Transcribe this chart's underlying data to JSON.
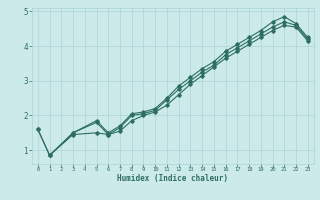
{
  "title": "",
  "xlabel": "Humidex (Indice chaleur)",
  "ylabel": "",
  "bg_color": "#cceaea",
  "grid_color": "#aad4d4",
  "line_color": "#2e6e62",
  "xlim": [
    -0.5,
    23.5
  ],
  "ylim": [
    0.6,
    5.1
  ],
  "yticks": [
    1,
    2,
    3,
    4,
    5
  ],
  "xticks": [
    0,
    1,
    2,
    3,
    4,
    5,
    6,
    7,
    8,
    9,
    10,
    11,
    12,
    13,
    14,
    15,
    16,
    17,
    18,
    19,
    20,
    21,
    22,
    23
  ],
  "line1_x": [
    0,
    1,
    3,
    5,
    6,
    7,
    8,
    9,
    10,
    11,
    12,
    13,
    14,
    15,
    16,
    17,
    18,
    19,
    20,
    21,
    22,
    23
  ],
  "line1_y": [
    1.6,
    0.85,
    1.5,
    1.85,
    1.5,
    1.7,
    2.05,
    2.1,
    2.2,
    2.5,
    2.85,
    3.1,
    3.35,
    3.55,
    3.85,
    4.05,
    4.25,
    4.45,
    4.7,
    4.85,
    4.65,
    4.25
  ],
  "line2_x": [
    0,
    1,
    3,
    5,
    6,
    7,
    8,
    9,
    10,
    11,
    12,
    13,
    14,
    15,
    16,
    17,
    18,
    19,
    20,
    21,
    22,
    23
  ],
  "line2_y": [
    1.6,
    0.85,
    1.5,
    1.8,
    1.45,
    1.65,
    2.0,
    2.05,
    2.15,
    2.45,
    2.75,
    3.0,
    3.25,
    3.45,
    3.75,
    3.95,
    4.15,
    4.35,
    4.55,
    4.7,
    4.6,
    4.2
  ],
  "line3_x": [
    1,
    3,
    5,
    6,
    7,
    8,
    9,
    10,
    11,
    12,
    13,
    14,
    15,
    16,
    17,
    18,
    19,
    20,
    21,
    22,
    23
  ],
  "line3_y": [
    0.85,
    1.45,
    1.5,
    1.45,
    1.55,
    1.85,
    2.0,
    2.1,
    2.3,
    2.6,
    2.9,
    3.15,
    3.4,
    3.65,
    3.85,
    4.05,
    4.25,
    4.45,
    4.6,
    4.55,
    4.15
  ]
}
